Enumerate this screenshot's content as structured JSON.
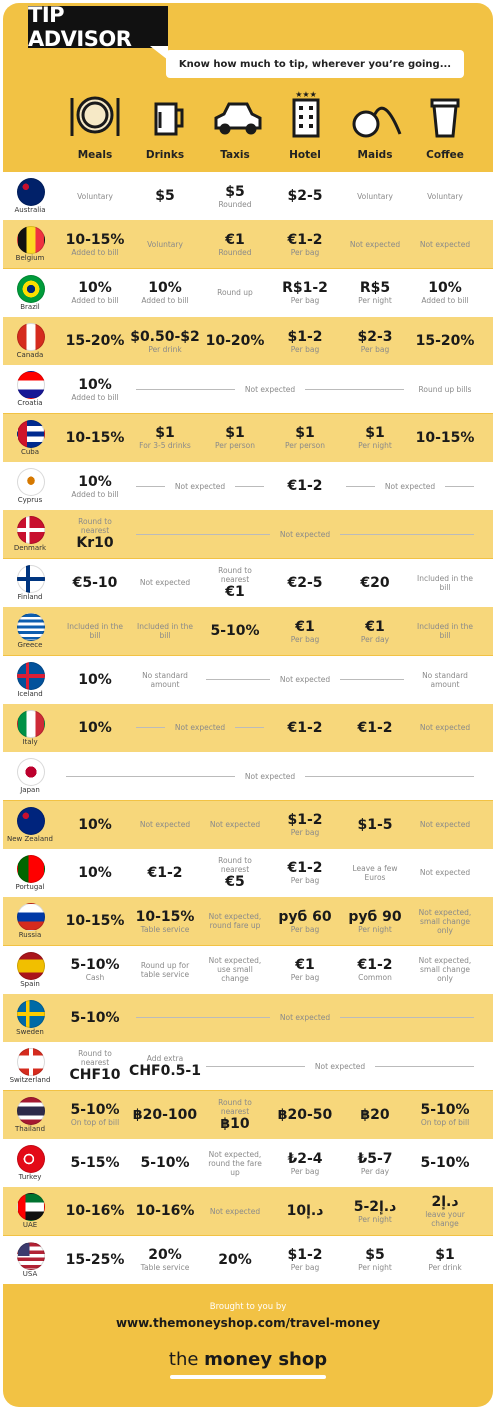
{
  "header": {
    "title": "TIP ADVISOR",
    "tagline": "Know how much to tip, wherever you’re going..."
  },
  "columns": [
    "Meals",
    "Drinks",
    "Taxis",
    "Hotel",
    "Maids",
    "Coffee"
  ],
  "rows": [
    {
      "country": "Australia",
      "cells": [
        {
          "note": "Voluntary"
        },
        {
          "main": "$5"
        },
        {
          "main": "$5",
          "note": "Rounded"
        },
        {
          "main": "$2-5"
        },
        {
          "note": "Voluntary"
        },
        {
          "note": "Voluntary"
        }
      ]
    },
    {
      "country": "Belgium",
      "cells": [
        {
          "main": "10-15%",
          "note": "Added to bill"
        },
        {
          "note": "Voluntary"
        },
        {
          "main": "€1",
          "note": "Rounded"
        },
        {
          "main": "€1-2",
          "note": "Per bag"
        },
        {
          "note": "Not expected"
        },
        {
          "note": "Not expected"
        }
      ]
    },
    {
      "country": "Brazil",
      "cells": [
        {
          "main": "10%",
          "note": "Added to bill"
        },
        {
          "main": "10%",
          "note": "Added to bill"
        },
        {
          "note": "Round up"
        },
        {
          "main": "R$1-2",
          "note": "Per bag"
        },
        {
          "main": "R$5",
          "note": "Per night"
        },
        {
          "main": "10%",
          "note": "Added to bill"
        }
      ]
    },
    {
      "country": "Canada",
      "cells": [
        {
          "main": "15-20%"
        },
        {
          "main": "$0.50-$2",
          "note": "Per drink"
        },
        {
          "main": "10-20%"
        },
        {
          "main": "$1-2",
          "note": "Per bag"
        },
        {
          "main": "$2-3",
          "note": "Per bag"
        },
        {
          "main": "15-20%"
        }
      ]
    },
    {
      "country": "Croatia",
      "cells": [
        {
          "main": "10%",
          "note": "Added to bill"
        },
        {
          "note": "Not expected"
        },
        {
          "note": "Round up bills"
        }
      ]
    },
    {
      "country": "Cuba",
      "cells": [
        {
          "main": "10-15%"
        },
        {
          "main": "$1",
          "note": "For 3-5 drinks"
        },
        {
          "main": "$1",
          "note": "Per person"
        },
        {
          "main": "$1",
          "note": "Per person"
        },
        {
          "main": "$1",
          "note": "Per night"
        },
        {
          "main": "10-15%"
        }
      ]
    },
    {
      "country": "Cyprus",
      "cells": [
        {
          "main": "10%",
          "note": "Added to bill"
        },
        {
          "note": "Not expected"
        },
        {
          "main": "€1-2"
        },
        {
          "note": "Not expected"
        }
      ]
    },
    {
      "country": "Denmark",
      "cells": [
        {
          "note": "Round to nearest",
          "main": "Kr10"
        },
        {
          "note": "Not expected"
        }
      ]
    },
    {
      "country": "Finland",
      "cells": [
        {
          "main": "€5-10"
        },
        {
          "note": "Not expected"
        },
        {
          "note": "Round to nearest",
          "main": "€1"
        },
        {
          "main": "€2-5"
        },
        {
          "main": "€20"
        },
        {
          "note": "Included in the bill"
        }
      ]
    },
    {
      "country": "Greece",
      "cells": [
        {
          "note": "Included in the bill"
        },
        {
          "note": "Included in the bill"
        },
        {
          "main": "5-10%"
        },
        {
          "main": "€1",
          "note": "Per bag"
        },
        {
          "main": "€1",
          "note": "Per day"
        },
        {
          "note": "Included in the bill"
        }
      ]
    },
    {
      "country": "Iceland",
      "cells": [
        {
          "main": "10%"
        },
        {
          "note": "No standard amount"
        },
        {
          "note": "Not expected"
        },
        {
          "note": "No standard amount"
        }
      ]
    },
    {
      "country": "Italy",
      "cells": [
        {
          "main": "10%"
        },
        {
          "note": "Not expected"
        },
        {
          "main": "€1-2"
        },
        {
          "main": "€1-2"
        },
        {
          "note": "Not expected"
        }
      ]
    },
    {
      "country": "Japan",
      "cells": [
        {
          "note": "Not expected"
        }
      ]
    },
    {
      "country": "New Zealand",
      "cells": [
        {
          "main": "10%"
        },
        {
          "note": "Not expected"
        },
        {
          "note": "Not expected"
        },
        {
          "main": "$1-2",
          "note": "Per bag"
        },
        {
          "main": "$1-5"
        },
        {
          "note": "Not expected"
        }
      ]
    },
    {
      "country": "Portugal",
      "cells": [
        {
          "main": "10%"
        },
        {
          "main": "€1-2"
        },
        {
          "note": "Round to nearest",
          "main": "€5"
        },
        {
          "main": "€1-2",
          "note": "Per bag"
        },
        {
          "note": "Leave a few Euros"
        },
        {
          "note": "Not expected"
        }
      ]
    },
    {
      "country": "Russia",
      "cells": [
        {
          "main": "10-15%"
        },
        {
          "main": "10-15%",
          "note": "Table service"
        },
        {
          "note": "Not expected, round fare up"
        },
        {
          "main": "руб 60",
          "note": "Per bag"
        },
        {
          "main": "руб 90",
          "note": "Per night"
        },
        {
          "note": "Not expected, small change only"
        }
      ]
    },
    {
      "country": "Spain",
      "cells": [
        {
          "main": "5-10%",
          "note": "Cash"
        },
        {
          "note": "Round up for table service"
        },
        {
          "note": "Not expected, use small change"
        },
        {
          "main": "€1",
          "note": "Per bag"
        },
        {
          "main": "€1-2",
          "note": "Common"
        },
        {
          "note": "Not expected, small change only"
        }
      ]
    },
    {
      "country": "Sweden",
      "cells": [
        {
          "main": "5-10%"
        },
        {
          "note": "Not expected"
        }
      ]
    },
    {
      "country": "Switzerland",
      "cells": [
        {
          "note": "Round to nearest",
          "main": "CHF10"
        },
        {
          "note": "Add extra",
          "main": "CHF0.5-1"
        },
        {
          "note": "Not expected"
        }
      ]
    },
    {
      "country": "Thailand",
      "cells": [
        {
          "main": "5-10%",
          "note": "On top of bill"
        },
        {
          "main": "฿20-100"
        },
        {
          "note": "Round to nearest",
          "main": "฿10"
        },
        {
          "main": "฿20-50"
        },
        {
          "main": "฿20"
        },
        {
          "main": "5-10%",
          "note": "On top of bill"
        }
      ]
    },
    {
      "country": "Turkey",
      "cells": [
        {
          "main": "5-15%"
        },
        {
          "main": "5-10%"
        },
        {
          "note": "Not expected, round the fare up"
        },
        {
          "main": "₺2-4",
          "note": "Per bag"
        },
        {
          "main": "₺5-7",
          "note": "Per day"
        },
        {
          "main": "5-10%"
        }
      ]
    },
    {
      "country": "UAE",
      "cells": [
        {
          "main": "10-16%"
        },
        {
          "main": "10-16%"
        },
        {
          "note": "Not expected"
        },
        {
          "main": "د.إ10"
        },
        {
          "main": "د.إ2-5",
          "note": "Per night"
        },
        {
          "main": "د.إ2",
          "note": "leave your change"
        }
      ]
    },
    {
      "country": "USA",
      "cells": [
        {
          "main": "15-25%"
        },
        {
          "main": "20%",
          "note": "Table service"
        },
        {
          "main": "20%"
        },
        {
          "main": "$1-2",
          "note": "Per bag"
        },
        {
          "main": "$5",
          "note": "Per night"
        },
        {
          "main": "$1",
          "note": "Per drink"
        }
      ]
    }
  ],
  "footer": {
    "credit": "Brought to you by",
    "url": "www.themoneyshop.com/travel-money",
    "logo_prefix": "the",
    "logo_name": "money shop"
  }
}
